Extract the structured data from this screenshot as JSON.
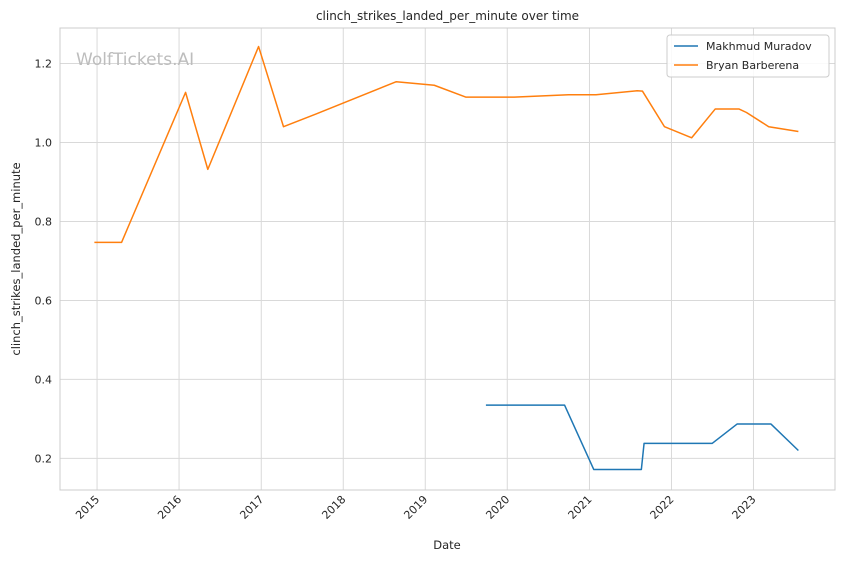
{
  "chart_data": {
    "type": "line",
    "title": "clinch_strikes_landed_per_minute over time",
    "xlabel": "Date",
    "ylabel": "clinch_strikes_landed_per_minute",
    "watermark": "WolfTickets.AI",
    "x_ticks": [
      "2015",
      "2016",
      "2017",
      "2018",
      "2019",
      "2020",
      "2021",
      "2022",
      "2023"
    ],
    "y_ticks": [
      "0.2",
      "0.4",
      "0.6",
      "0.8",
      "1.0",
      "1.2"
    ],
    "xlim": [
      "2014-07-20",
      "2023-12-30"
    ],
    "ylim": [
      0.12,
      1.29
    ],
    "grid": true,
    "legend_position": "top-right",
    "series": [
      {
        "name": "Makhmud Muradov",
        "color": "#1f77b4",
        "points": [
          [
            "2019-09-28",
            0.335
          ],
          [
            "2020-09-12",
            0.335
          ],
          [
            "2021-01-20",
            0.172
          ],
          [
            "2021-08-20",
            0.172
          ],
          [
            "2021-09-01",
            0.238
          ],
          [
            "2022-07-01",
            0.238
          ],
          [
            "2022-10-20",
            0.287
          ],
          [
            "2023-03-20",
            0.287
          ],
          [
            "2023-07-20",
            0.22
          ]
        ]
      },
      {
        "name": "Bryan Barberena",
        "color": "#ff7f0e",
        "points": [
          [
            "2014-12-20",
            0.747
          ],
          [
            "2015-04-20",
            0.747
          ],
          [
            "2016-01-30",
            1.127
          ],
          [
            "2016-05-08",
            0.932
          ],
          [
            "2016-12-20",
            1.243
          ],
          [
            "2017-04-10",
            1.04
          ],
          [
            "2017-09-01",
            1.072
          ],
          [
            "2018-08-25",
            1.154
          ],
          [
            "2019-02-10",
            1.145
          ],
          [
            "2019-06-30",
            1.115
          ],
          [
            "2020-02-01",
            1.115
          ],
          [
            "2020-09-30",
            1.121
          ],
          [
            "2021-01-30",
            1.121
          ],
          [
            "2021-08-01",
            1.131
          ],
          [
            "2021-08-25",
            1.13
          ],
          [
            "2021-12-01",
            1.04
          ],
          [
            "2022-04-01",
            1.012
          ],
          [
            "2022-07-15",
            1.085
          ],
          [
            "2022-10-28",
            1.085
          ],
          [
            "2022-12-01",
            1.076
          ],
          [
            "2023-03-10",
            1.04
          ],
          [
            "2023-07-20",
            1.028
          ]
        ]
      }
    ]
  }
}
